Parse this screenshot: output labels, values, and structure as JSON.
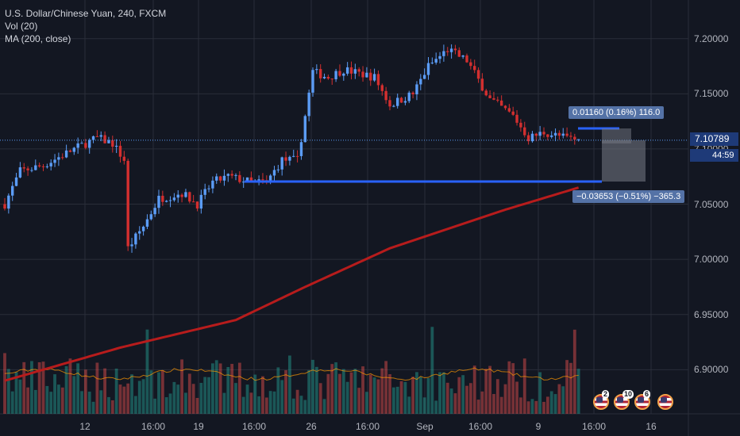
{
  "legend": {
    "title": "U.S. Dollar/Chinese Yuan, 240, FXCM",
    "indicator1": "Vol (20)",
    "indicator2": "MA (200, close)"
  },
  "colors": {
    "background": "#131722",
    "up": "#5b9cf6",
    "down": "#d32f2f",
    "ma": "#b71c1c",
    "vol_up": "#26a69a",
    "vol_down": "#ef5350",
    "vol_ma": "#ff9800",
    "measure_line": "#2962ff"
  },
  "price_axis": {
    "ticks": [
      "7.20000",
      "7.15000",
      "7.10000",
      "7.05000",
      "7.00000",
      "6.95000",
      "6.90000"
    ],
    "last_price_label": "7.10789",
    "countdown": "44:59"
  },
  "time_axis": {
    "ticks": [
      "12",
      "16:00",
      "19",
      "16:00",
      "26",
      "16:00",
      "Sep",
      "16:00",
      "9",
      "16:00",
      "16"
    ]
  },
  "measure": {
    "upper_label": "0.01160 (0.16%) 116.0",
    "lower_label": "−0.03653 (−0.51%) −365.3"
  },
  "events": {
    "badges": [
      "2",
      "10",
      "6"
    ]
  },
  "chart_data": {
    "type": "candlestick",
    "symbol": "U.S. Dollar/Chinese Yuan",
    "interval": "240",
    "source": "FXCM",
    "ylim": [
      6.86,
      7.235
    ],
    "last_price": 7.10789,
    "x_ticks": [
      "12",
      "16:00",
      "19",
      "16:00",
      "26",
      "16:00",
      "Sep",
      "16:00",
      "9",
      "16:00",
      "16"
    ],
    "close_path": [
      {
        "i": 0,
        "close": 7.05
      },
      {
        "i": 4,
        "close": 7.08
      },
      {
        "i": 10,
        "close": 7.085
      },
      {
        "i": 18,
        "close": 7.1
      },
      {
        "i": 24,
        "close": 7.11
      },
      {
        "i": 28,
        "close": 7.105
      },
      {
        "i": 31,
        "close": 7.09
      },
      {
        "i": 32,
        "close": 7.01
      },
      {
        "i": 36,
        "close": 7.03
      },
      {
        "i": 40,
        "close": 7.055
      },
      {
        "i": 46,
        "close": 7.06
      },
      {
        "i": 50,
        "close": 7.05
      },
      {
        "i": 54,
        "close": 7.07
      },
      {
        "i": 58,
        "close": 7.075
      },
      {
        "i": 64,
        "close": 7.07
      },
      {
        "i": 68,
        "close": 7.07
      },
      {
        "i": 72,
        "close": 7.09
      },
      {
        "i": 76,
        "close": 7.09
      },
      {
        "i": 79,
        "close": 7.15
      },
      {
        "i": 80,
        "close": 7.17
      },
      {
        "i": 84,
        "close": 7.165
      },
      {
        "i": 88,
        "close": 7.172
      },
      {
        "i": 96,
        "close": 7.165
      },
      {
        "i": 100,
        "close": 7.14
      },
      {
        "i": 106,
        "close": 7.15
      },
      {
        "i": 110,
        "close": 7.175
      },
      {
        "i": 115,
        "close": 7.19
      },
      {
        "i": 120,
        "close": 7.18
      },
      {
        "i": 126,
        "close": 7.145
      },
      {
        "i": 132,
        "close": 7.13
      },
      {
        "i": 136,
        "close": 7.11
      },
      {
        "i": 140,
        "close": 7.115
      },
      {
        "i": 146,
        "close": 7.11
      },
      {
        "i": 149,
        "close": 7.108
      }
    ],
    "ma200": [
      {
        "i": 0,
        "value": 6.89
      },
      {
        "i": 30,
        "value": 6.92
      },
      {
        "i": 60,
        "value": 6.945
      },
      {
        "i": 78,
        "value": 6.975
      },
      {
        "i": 100,
        "value": 7.01
      },
      {
        "i": 130,
        "value": 7.045
      },
      {
        "i": 149,
        "value": 7.065
      }
    ],
    "measure_tool": {
      "upper": {
        "change": 0.0116,
        "percent": 0.16,
        "pips": 116.0
      },
      "lower": {
        "change": -0.03653,
        "percent": -0.51,
        "pips": -365.3
      }
    }
  }
}
